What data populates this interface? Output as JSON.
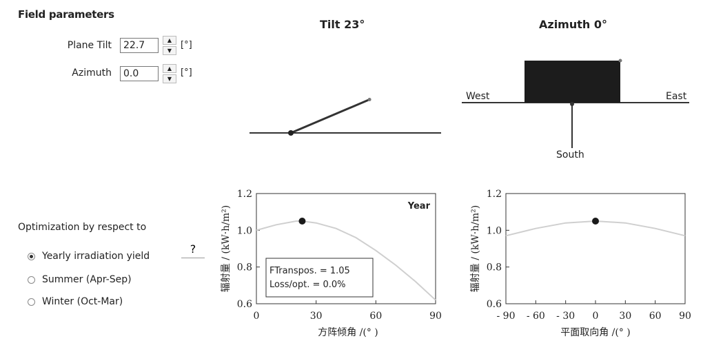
{
  "field_params": {
    "title": "Field parameters",
    "tilt": {
      "label": "Plane Tilt",
      "value": "22.7",
      "unit": "[°]"
    },
    "azimuth": {
      "label": "Azimuth",
      "value": "0.0",
      "unit": "[°]"
    }
  },
  "optimization": {
    "title": "Optimization by respect to",
    "help_label": "?",
    "options": [
      {
        "label": "Yearly irradiation yield",
        "selected": true
      },
      {
        "label": "Summer (Apr-Sep)",
        "selected": false
      },
      {
        "label": "Winter (Oct-Mar)",
        "selected": false
      }
    ]
  },
  "tilt_diagram": {
    "title": "Tilt 23°",
    "tilt_deg": 23
  },
  "azimuth_diagram": {
    "title": "Azimuth 0°",
    "west": "West",
    "east": "East",
    "south": "South"
  },
  "chart_data": [
    {
      "type": "line",
      "title": "",
      "corner_label": "Year",
      "xlabel": "方阵倾角 /(° )",
      "ylabel": "辐射量 / (kW·h/m²)",
      "xlim": [
        0,
        90
      ],
      "ylim": [
        0.6,
        1.2
      ],
      "xticks": [
        "0",
        "30",
        "60",
        "90"
      ],
      "yticks": [
        "0.6",
        "0.8",
        "1.0",
        "1.2"
      ],
      "x": [
        0,
        10,
        20,
        23,
        30,
        40,
        50,
        60,
        70,
        80,
        90
      ],
      "y": [
        1.0,
        1.03,
        1.05,
        1.05,
        1.04,
        1.01,
        0.96,
        0.89,
        0.81,
        0.72,
        0.62
      ],
      "marker": {
        "x": 23,
        "y": 1.05
      },
      "annotation": [
        "FTranspos. = 1.05",
        "Loss/opt. = 0.0%"
      ]
    },
    {
      "type": "line",
      "title": "",
      "xlabel": "平面取向角 /(° )",
      "ylabel": "辐射量 / (kW·h/m²)",
      "xlim": [
        -90,
        90
      ],
      "ylim": [
        0.6,
        1.2
      ],
      "xticks": [
        "- 90",
        "- 60",
        "- 30",
        "0",
        "30",
        "60",
        "90"
      ],
      "yticks": [
        "0.6",
        "0.8",
        "1.0",
        "1.2"
      ],
      "x": [
        -90,
        -60,
        -30,
        0,
        30,
        60,
        90
      ],
      "y": [
        0.97,
        1.01,
        1.04,
        1.05,
        1.04,
        1.01,
        0.97
      ],
      "marker": {
        "x": 0,
        "y": 1.05
      }
    }
  ]
}
